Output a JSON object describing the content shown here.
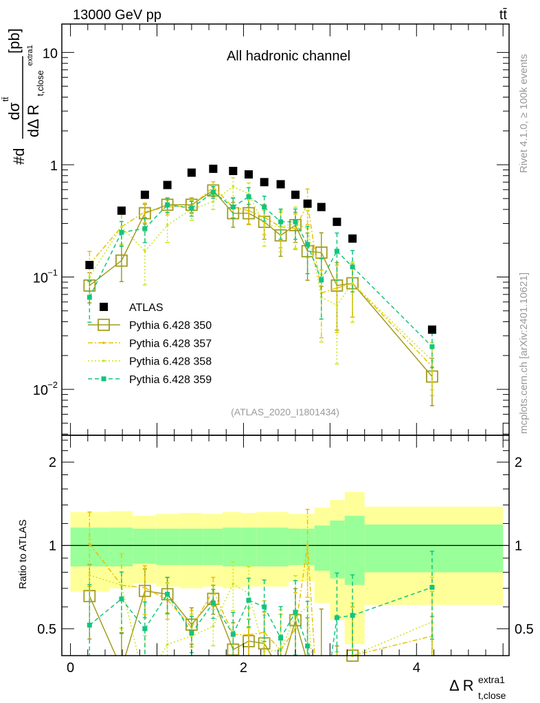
{
  "header": {
    "energy_label": "13000 GeV pp",
    "process_label": "tt̄",
    "channel_title": "All hadronic channel",
    "rivet_label": "Rivet 4.1.0, ≥ 100k events",
    "mcplots_label": "mcplots.cern.ch [arXiv:2401.10621]",
    "analysis_label": "(ATLAS_2020_I1801434)"
  },
  "chart_data": {
    "type": "scatter",
    "title": "All hadronic channel",
    "xlabel_main": "Δ R",
    "xlabel_sub": "t,close",
    "xlabel_sup": "extra1",
    "ylabel": {
      "prefix": "#d",
      "numerator": "dσ",
      "numerator_sup": "tt̄",
      "denominator": "dΔ R",
      "denominator_sub": "t,close",
      "denominator_sup": "extra1",
      "unit": "[pb]"
    },
    "ratio_ylabel": "Ratio to ATLAS",
    "xlim": [
      -0.1,
      5.07
    ],
    "ylim": [
      0.0039,
      17.9
    ],
    "yscale": "log",
    "ratio_ylim": [
      0.4,
      2.5
    ],
    "x_tick_labels": [
      "0",
      "2",
      "4"
    ],
    "y_tick_labels": [
      {
        "value": 0.01,
        "base": "10",
        "exp": "−2"
      },
      {
        "value": 0.1,
        "base": "10",
        "exp": "−1"
      },
      {
        "value": 1,
        "base": "1",
        "exp": ""
      },
      {
        "value": 10,
        "base": "10",
        "exp": ""
      }
    ],
    "ratio_tick_labels": [
      {
        "value": 0.5,
        "label": "0.5"
      },
      {
        "value": 1,
        "label": "1"
      },
      {
        "value": 2,
        "label": "2"
      }
    ],
    "x": [
      0.22,
      0.59,
      0.86,
      1.12,
      1.4,
      1.65,
      1.88,
      2.06,
      2.24,
      2.43,
      2.6,
      2.74,
      2.9,
      3.08,
      3.26,
      4.18
    ],
    "bin_edges": [
      0,
      0.45,
      0.72,
      0.99,
      1.26,
      1.53,
      1.76,
      1.97,
      2.15,
      2.33,
      2.52,
      2.67,
      2.82,
      3.0,
      3.17,
      3.4,
      5.0
    ],
    "band_total_up": [
      1.32,
      1.33,
      1.28,
      1.3,
      1.31,
      1.3,
      1.32,
      1.31,
      1.32,
      1.32,
      1.3,
      1.3,
      1.37,
      1.46,
      1.56,
      1.38
    ],
    "band_total_down": [
      0.68,
      0.7,
      0.73,
      0.71,
      0.7,
      0.71,
      0.7,
      0.71,
      0.71,
      0.71,
      0.74,
      0.74,
      0.62,
      0.54,
      0.44,
      0.61
    ],
    "band_stat_up": [
      1.16,
      1.16,
      1.15,
      1.15,
      1.15,
      1.15,
      1.16,
      1.16,
      1.16,
      1.16,
      1.15,
      1.15,
      1.18,
      1.23,
      1.28,
      1.19
    ],
    "band_stat_down": [
      0.84,
      0.84,
      0.86,
      0.85,
      0.85,
      0.85,
      0.84,
      0.84,
      0.84,
      0.84,
      0.85,
      0.85,
      0.81,
      0.76,
      0.72,
      0.8
    ],
    "series": [
      {
        "name": "ATLAS",
        "color": "#000000",
        "style": "data",
        "values": [
          0.128,
          0.39,
          0.54,
          0.66,
          0.85,
          0.92,
          0.88,
          0.82,
          0.7,
          0.67,
          0.54,
          0.45,
          0.42,
          0.31,
          0.22,
          0.034
        ],
        "rel_err": []
      },
      {
        "name": "Pythia 6.428 350",
        "color": "#a09c1e",
        "style": "solid-open-square",
        "values": [
          0.084,
          0.14,
          0.37,
          0.44,
          0.44,
          0.59,
          0.37,
          0.37,
          0.31,
          0.235,
          0.29,
          0.17,
          0.165,
          0.084,
          0.088,
          0.013
        ],
        "rel_err": [
          0.3,
          0.35,
          0.2,
          0.15,
          0.15,
          0.12,
          0.25,
          0.2,
          0.3,
          0.35,
          0.3,
          0.45,
          0.5,
          0.6,
          0.5,
          0.45
        ]
      },
      {
        "name": "Pythia 6.428 357",
        "color": "#e8c000",
        "style": "dashdot",
        "values": [
          0.13,
          0.28,
          0.38,
          0.42,
          0.43,
          0.63,
          0.42,
          0.39,
          0.34,
          0.28,
          0.27,
          0.45,
          0.072,
          0.08,
          0.088,
          0.016
        ],
        "rel_err": [
          0.3,
          0.3,
          0.2,
          0.15,
          0.15,
          0.12,
          0.2,
          0.25,
          0.3,
          0.35,
          0.35,
          0.35,
          0.6,
          0.6,
          0.5,
          0.45
        ]
      },
      {
        "name": "Pythia 6.428 358",
        "color": "#c8e619",
        "style": "dotted",
        "values": [
          0.1,
          0.28,
          0.17,
          0.29,
          0.4,
          0.47,
          0.64,
          0.55,
          0.29,
          0.28,
          0.3,
          0.27,
          0.066,
          0.056,
          0.088,
          0.018
        ],
        "rel_err": [
          0.35,
          0.3,
          0.5,
          0.3,
          0.2,
          0.15,
          0.2,
          0.25,
          0.35,
          0.4,
          0.4,
          0.45,
          0.6,
          0.7,
          0.55,
          0.45
        ]
      },
      {
        "name": "Pythia 6.428 359",
        "color": "#12c47e",
        "style": "dashed-filled-square",
        "values": [
          0.066,
          0.25,
          0.27,
          0.44,
          0.41,
          0.57,
          0.42,
          0.52,
          0.42,
          0.31,
          0.31,
          0.195,
          0.094,
          0.17,
          0.123,
          0.024
        ],
        "rel_err": [
          0.4,
          0.25,
          0.25,
          0.15,
          0.15,
          0.12,
          0.2,
          0.2,
          0.25,
          0.3,
          0.3,
          0.45,
          0.55,
          0.45,
          0.4,
          0.35
        ]
      }
    ]
  }
}
